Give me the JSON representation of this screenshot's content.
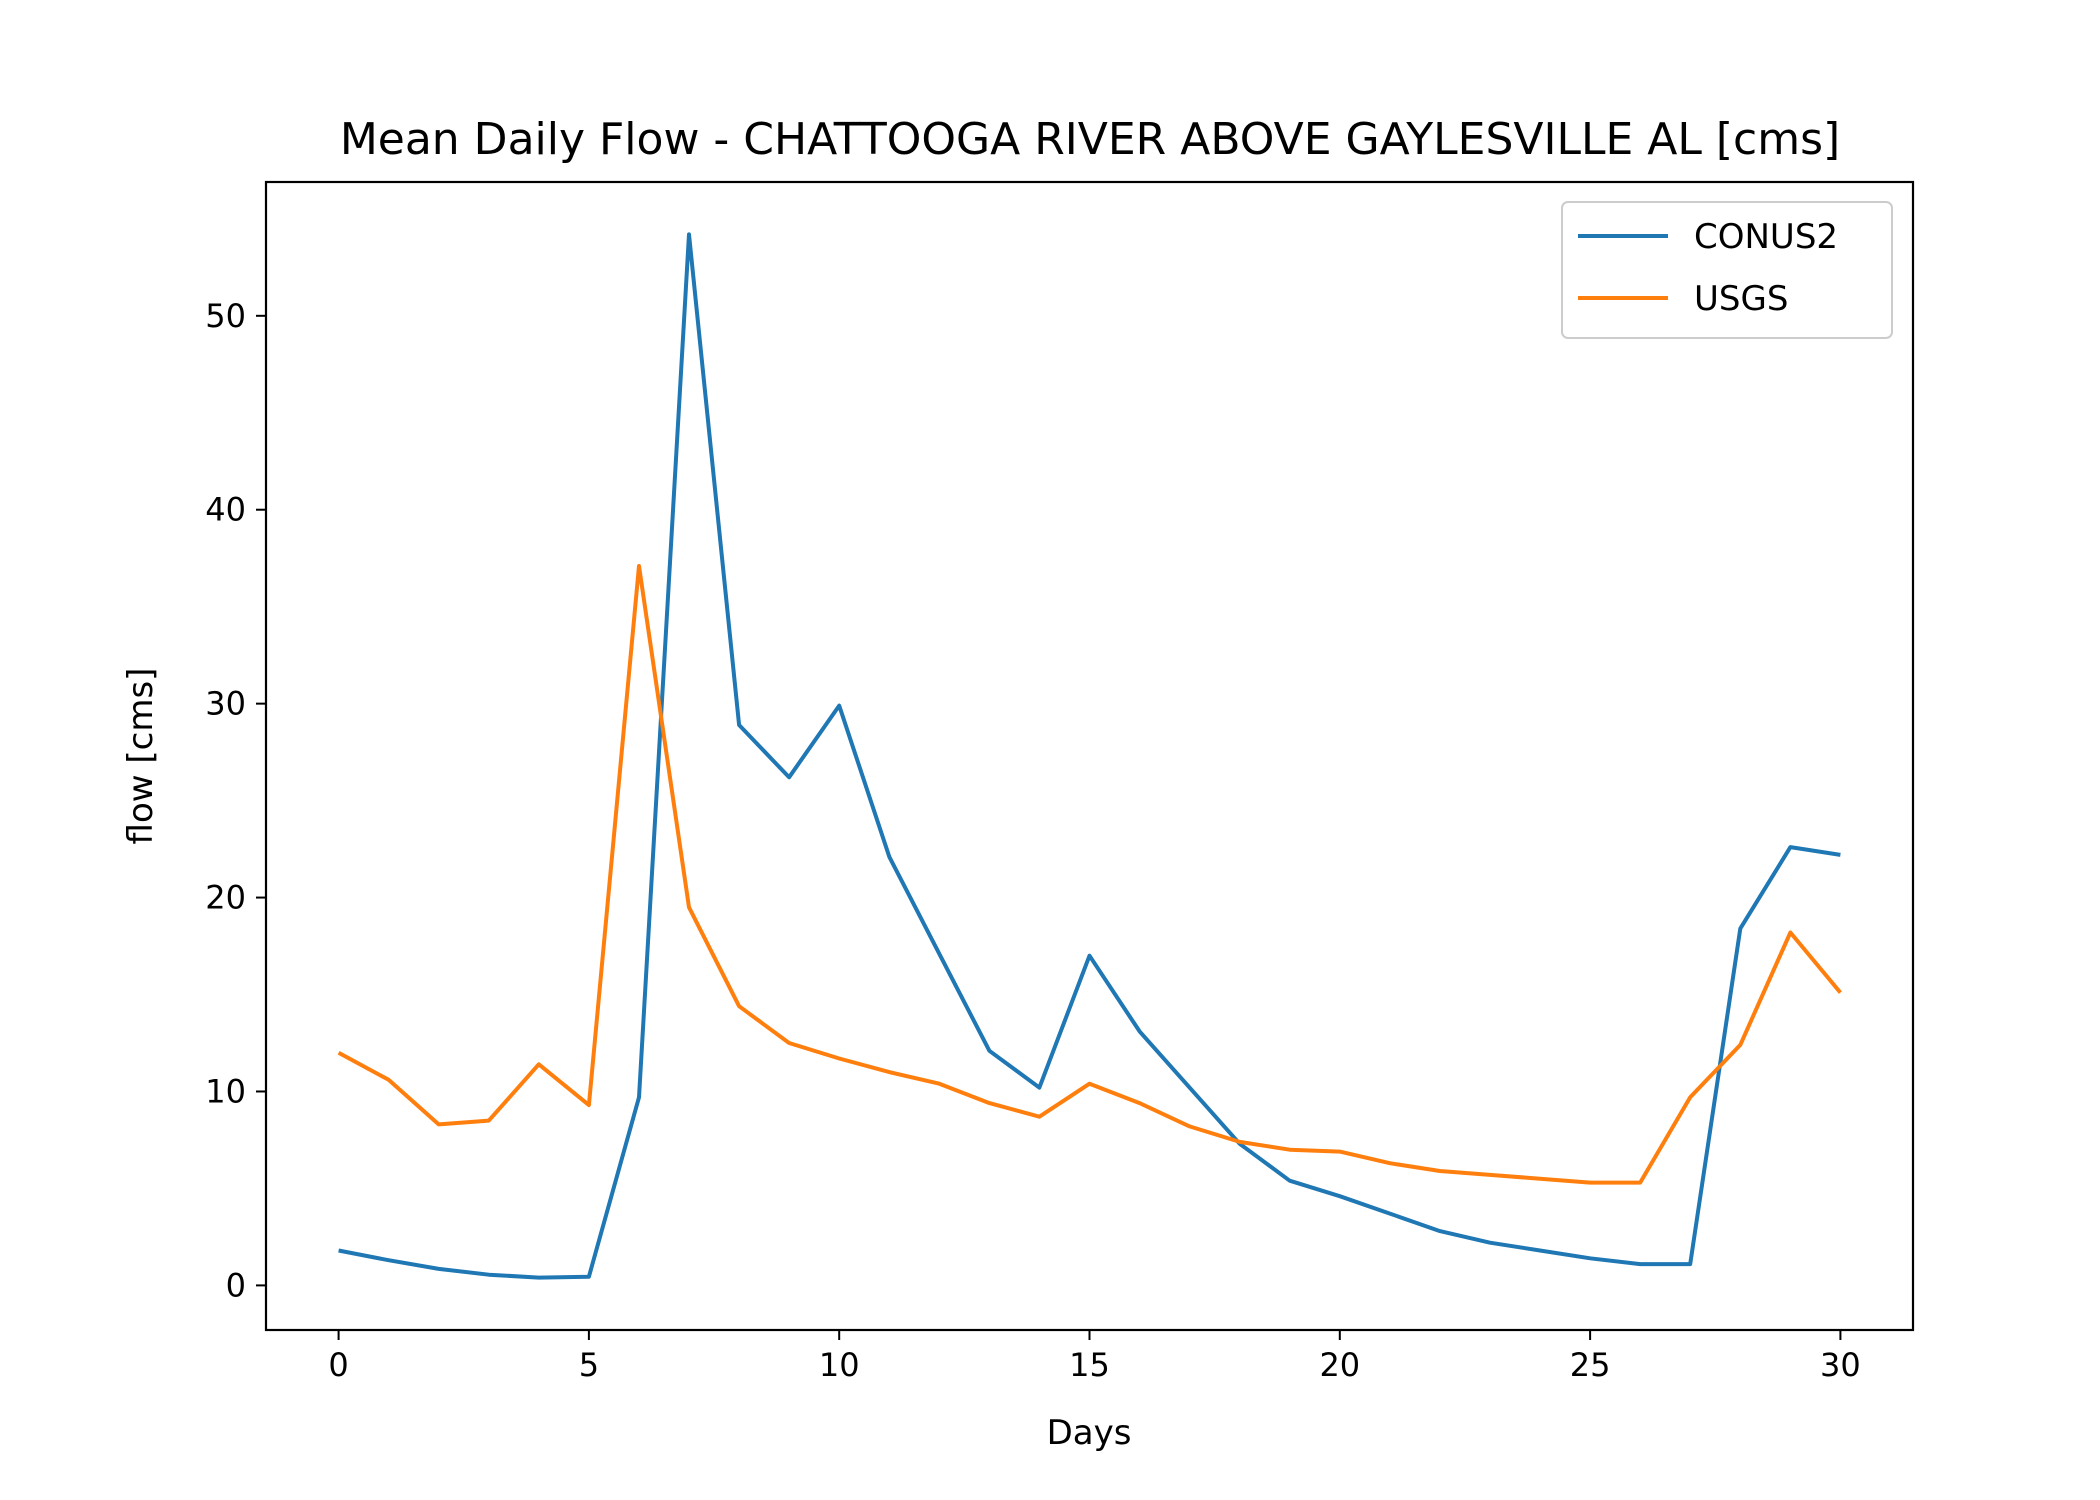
{
  "chart_data": {
    "type": "line",
    "title": "Mean Daily Flow - CHATTOOGA RIVER ABOVE GAYLESVILLE AL [cms]",
    "xlabel": "Days",
    "ylabel": "flow [cms]",
    "xlim": [
      -1.45,
      31.45
    ],
    "ylim": [
      -2.3,
      56.9
    ],
    "xticks": [
      0,
      5,
      10,
      15,
      20,
      25,
      30
    ],
    "yticks": [
      0,
      10,
      20,
      30,
      40,
      50
    ],
    "xtick_labels": [
      "0",
      "5",
      "10",
      "15",
      "20",
      "25",
      "30"
    ],
    "ytick_labels": [
      "0",
      "10",
      "20",
      "30",
      "40",
      "50"
    ],
    "grid": false,
    "legend_position": "top-right",
    "x": [
      0,
      1,
      2,
      3,
      4,
      5,
      6,
      7,
      8,
      9,
      10,
      11,
      12,
      13,
      14,
      15,
      16,
      17,
      18,
      19,
      20,
      21,
      22,
      23,
      24,
      25,
      26,
      27,
      28,
      29,
      30
    ],
    "series": [
      {
        "name": "CONUS2",
        "color": "#1f77b4",
        "values": [
          1.8,
          1.3,
          0.85,
          0.55,
          0.4,
          0.45,
          9.7,
          54.2,
          28.9,
          26.2,
          29.9,
          22.1,
          17.1,
          12.1,
          10.2,
          17.0,
          13.1,
          10.2,
          7.3,
          5.4,
          4.6,
          3.7,
          2.8,
          2.2,
          1.8,
          1.4,
          1.1,
          1.1,
          18.4,
          22.6,
          22.2
        ]
      },
      {
        "name": "USGS",
        "color": "#ff7f0e",
        "values": [
          12.0,
          10.6,
          8.3,
          8.5,
          11.4,
          9.3,
          37.1,
          19.5,
          14.4,
          12.5,
          11.7,
          11.0,
          10.4,
          9.4,
          8.7,
          10.4,
          9.4,
          8.2,
          7.4,
          7.0,
          6.9,
          6.3,
          5.9,
          5.7,
          5.5,
          5.3,
          5.3,
          9.7,
          12.4,
          18.2,
          15.1
        ]
      }
    ]
  }
}
